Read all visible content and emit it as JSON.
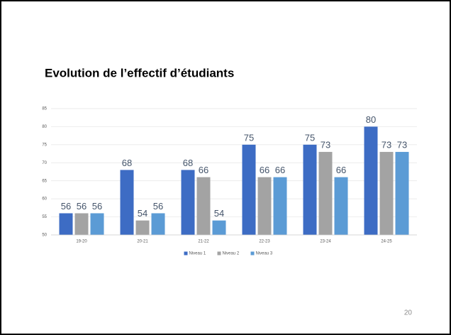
{
  "chart_data": {
    "type": "bar",
    "title": "Evolution de l’effectif d’étudiants",
    "categories": [
      "19-20",
      "20-21",
      "21-22",
      "22-23",
      "23-24",
      "24-25"
    ],
    "series": [
      {
        "name": "Niveau 1",
        "color": "#3d6cc4",
        "values": [
          56,
          68,
          68,
          75,
          75,
          80
        ]
      },
      {
        "name": "Niveau 2",
        "color": "#a3a3a3",
        "values": [
          56,
          54,
          66,
          66,
          73,
          73
        ]
      },
      {
        "name": "Niveau 3",
        "color": "#5b9bd5",
        "values": [
          56,
          56,
          54,
          66,
          66,
          73
        ]
      }
    ],
    "ylim": [
      50,
      85
    ],
    "yticks": [
      50,
      55,
      60,
      65,
      70,
      75,
      80,
      85
    ],
    "grid": true,
    "legend": "bottom"
  },
  "page_number": "20"
}
